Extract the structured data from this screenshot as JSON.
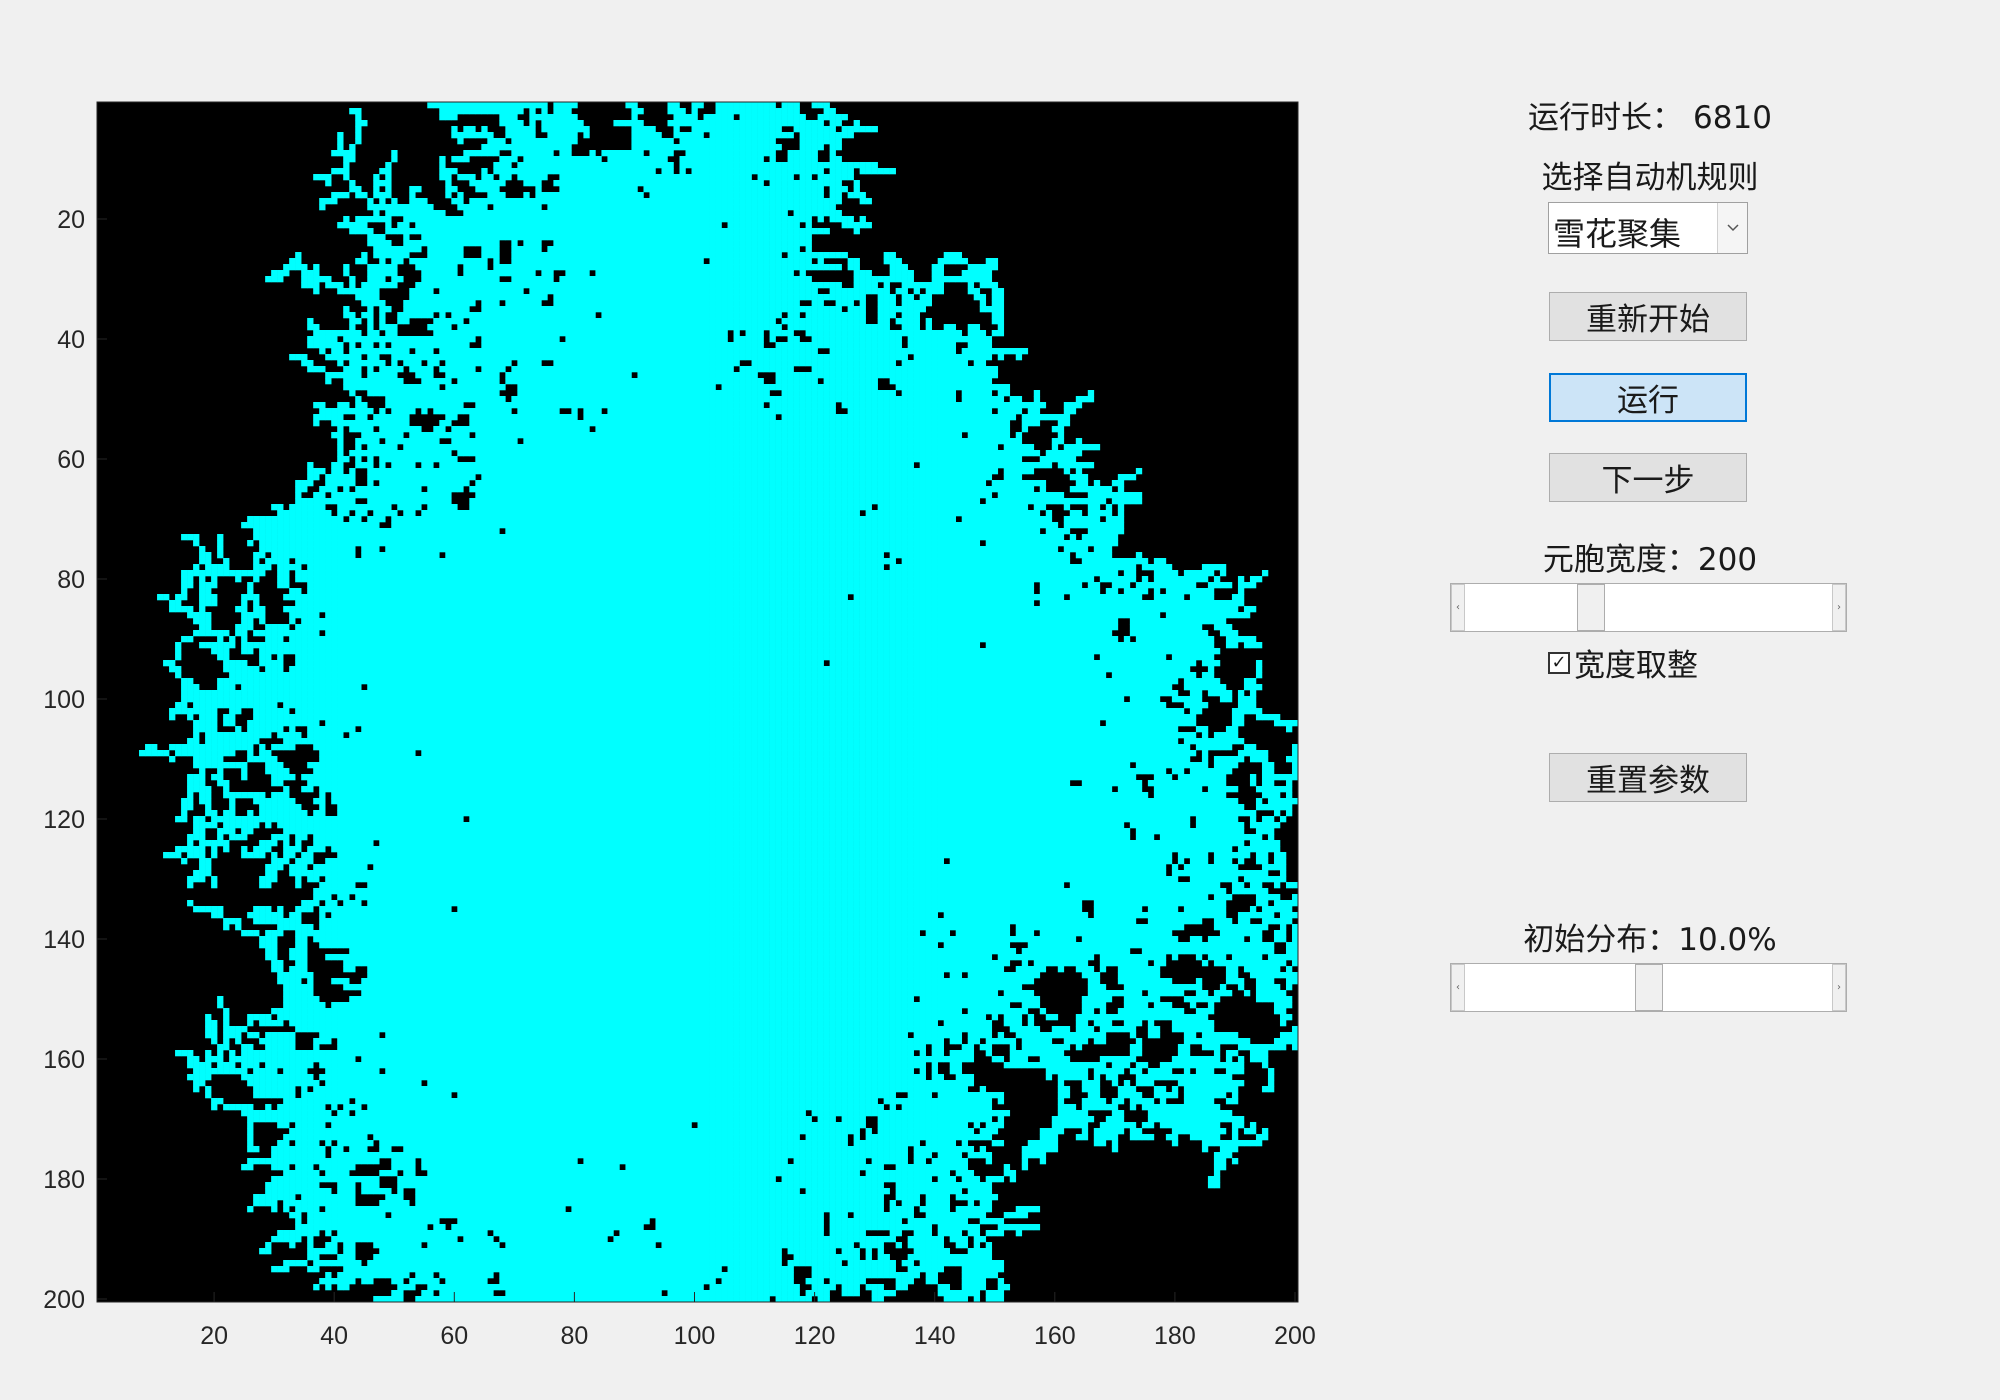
{
  "plot": {
    "type": "image",
    "background_color": "#000000",
    "cell_color": "#00ffff",
    "x_ticks": [
      "20",
      "40",
      "60",
      "80",
      "100",
      "120",
      "140",
      "160",
      "180",
      "200"
    ],
    "y_ticks": [
      "20",
      "40",
      "60",
      "80",
      "100",
      "120",
      "140",
      "160",
      "180",
      "200"
    ],
    "xlim": [
      0.5,
      200.5
    ],
    "ylim": [
      0.5,
      200.5
    ],
    "grid_size": 200,
    "pattern": "snowflake / DLA aggregate"
  },
  "panel": {
    "runtime_label": "运行时长：",
    "runtime_value": "6810",
    "rule_label": "选择自动机规则",
    "rule_selected": "雪花聚集",
    "restart_button": "重新开始",
    "run_button": "运行",
    "step_button": "下一步",
    "width_label": "元胞宽度：",
    "width_value": "200",
    "width_slider_fraction": 0.33,
    "round_width_label": "宽度取整",
    "round_width_checked": true,
    "reset_button": "重置参数",
    "init_label": "初始分布：",
    "init_value": "10.0%",
    "init_slider_fraction": 0.5
  },
  "icons": {
    "dropdown_arrow": "chevron-down-icon",
    "slider_left": "arrow-left-icon",
    "slider_right": "arrow-right-icon",
    "checkmark": "checkmark-icon"
  }
}
